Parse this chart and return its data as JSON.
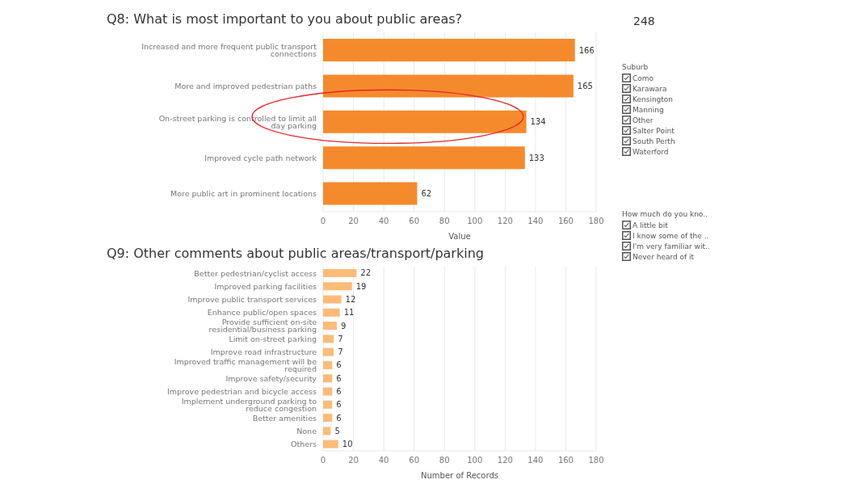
{
  "chart_data": [
    {
      "type": "bar",
      "orientation": "horizontal",
      "title": "Q8: What is most important to you about public areas?",
      "xlabel": "Value",
      "categories": [
        "Increased and more frequent public transport connections",
        "More and improved pedestrian paths",
        "On-street parking is controlled to limit all day parking",
        "Improved cycle path network",
        "More public art in prominent locations"
      ],
      "values": [
        166,
        165,
        134,
        133,
        62
      ],
      "color": "#f58a2c",
      "xlim": [
        0,
        180
      ],
      "xticks": [
        0,
        20,
        40,
        60,
        80,
        100,
        120,
        140,
        160,
        180
      ],
      "grid": "x",
      "data_labels": true,
      "legend": false
    },
    {
      "type": "bar",
      "orientation": "horizontal",
      "title": "Q9: Other comments about public areas/transport/parking",
      "xlabel": "Number of Records",
      "categories": [
        "Better pedestrian/cyclist access",
        "Improved parking facilities",
        "Improve public transport services",
        "Enhance public/open spaces",
        "Provide sufficient on-site residential/business parking",
        "Limit on-street parking",
        "Improve road infrastructure",
        "Improved traffic management will be required",
        "Improve safety/security",
        "Improve pedestrian and bicycle access",
        "Implement underground parking to reduce congestion",
        "Better amenities",
        "None",
        "Others"
      ],
      "values": [
        22,
        19,
        12,
        11,
        9,
        7,
        7,
        6,
        6,
        6,
        6,
        6,
        5,
        10
      ],
      "color": "#fdbb78",
      "xlim": [
        0,
        180
      ],
      "xticks": [
        0,
        20,
        40,
        60,
        80,
        100,
        120,
        140,
        160,
        180
      ],
      "grid": "x",
      "data_labels": true,
      "legend": false
    },
    {
      "type": "other",
      "title": "248",
      "annotations": [
        "Suburb",
        "Como",
        "Karawara",
        "Kensington",
        "Manning",
        "Other",
        "Salter Point",
        "South Perth",
        "Waterford",
        "How much do you kno..",
        "A little bit",
        "I know some of the ..",
        "I'm very familiar wit..",
        "Never heard of it"
      ]
    }
  ]
}
